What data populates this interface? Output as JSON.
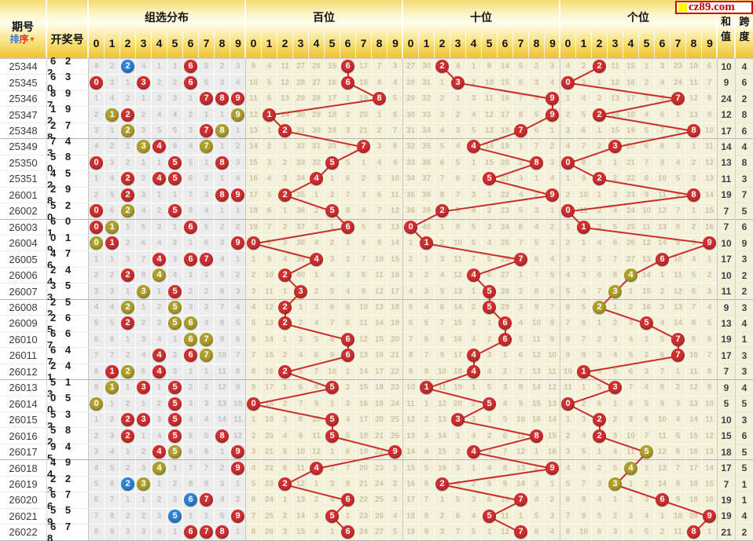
{
  "header": {
    "issue_label": "期号",
    "sort_char1": "排",
    "sort_char2": "序",
    "sort_arrow": "▼",
    "draw_label": "开奖号",
    "sections": [
      {
        "label": "组选分布"
      },
      {
        "label": "百位"
      },
      {
        "label": "十位"
      },
      {
        "label": "个位"
      }
    ],
    "digits": [
      "0",
      "1",
      "2",
      "3",
      "4",
      "5",
      "6",
      "7",
      "8",
      "9"
    ],
    "sum_char1": "和",
    "sum_char2": "值",
    "span_char1": "跨",
    "span_char2": "度",
    "logo_text": "cz89.com"
  },
  "colors": {
    "red_ball": "#d02f2f",
    "olive_ball": "#afa02b",
    "blue_ball": "#2e83d6",
    "trend_line": "#ca2d29",
    "logo_red": "#c00000",
    "logo_yellow": "#ffff00"
  },
  "chart_data": {
    "type": "table",
    "draws": [
      {
        "issue": "25344",
        "num": "622"
      },
      {
        "issue": "25345",
        "num": "630"
      },
      {
        "issue": "25346",
        "num": "897"
      },
      {
        "issue": "25347",
        "num": "192"
      },
      {
        "issue": "25348",
        "num": "278"
      },
      {
        "issue": "25349",
        "num": "743"
      },
      {
        "issue": "25350",
        "num": "580"
      },
      {
        "issue": "25351",
        "num": "452"
      },
      {
        "issue": "26001",
        "num": "298"
      },
      {
        "issue": "26002",
        "num": "520"
      },
      {
        "issue": "26003",
        "num": "601"
      },
      {
        "issue": "26004",
        "num": "019"
      },
      {
        "issue": "26005",
        "num": "476"
      },
      {
        "issue": "26006",
        "num": "244"
      },
      {
        "issue": "26007",
        "num": "353"
      },
      {
        "issue": "26008",
        "num": "252"
      },
      {
        "issue": "26009",
        "num": "265"
      },
      {
        "issue": "26010",
        "num": "667"
      },
      {
        "issue": "26011",
        "num": "647"
      },
      {
        "issue": "26012",
        "num": "241"
      },
      {
        "issue": "26013",
        "num": "513"
      },
      {
        "issue": "26014",
        "num": "050"
      },
      {
        "issue": "26015",
        "num": "532"
      },
      {
        "issue": "26016",
        "num": "582"
      },
      {
        "issue": "26017",
        "num": "945"
      },
      {
        "issue": "26018",
        "num": "494"
      },
      {
        "issue": "26019",
        "num": "223"
      },
      {
        "issue": "26020",
        "num": "676"
      },
      {
        "issue": "26021",
        "num": "559"
      },
      {
        "issue": "26022",
        "num": "678"
      }
    ],
    "sum_values": [
      10,
      9,
      24,
      12,
      17,
      14,
      13,
      11,
      19,
      7,
      7,
      10,
      17,
      10,
      11,
      9,
      13,
      19,
      17,
      7,
      9,
      5,
      10,
      15,
      18,
      17,
      7,
      19,
      19,
      21
    ],
    "span_values": [
      4,
      6,
      2,
      8,
      6,
      4,
      8,
      3,
      7,
      5,
      6,
      9,
      3,
      2,
      2,
      3,
      4,
      1,
      3,
      3,
      4,
      5,
      3,
      6,
      5,
      5,
      1,
      1,
      4,
      2
    ],
    "seeds": {
      "zuxuan": [
        4,
        2,
        0,
        4,
        1,
        1,
        0,
        5,
        2,
        3
      ],
      "bai": [
        9,
        4,
        11,
        27,
        26,
        15,
        0,
        17,
        7,
        3
      ],
      "shi": [
        27,
        30,
        0,
        4,
        1,
        9,
        14,
        5,
        2,
        3
      ],
      "ge": [
        4,
        2,
        0,
        11,
        15,
        1,
        3,
        23,
        10,
        6
      ]
    },
    "circle_colors": {
      "zuxuan": [
        {
          "2": "B",
          "6": "R"
        },
        {
          "0": "R",
          "3": "R",
          "6": "R"
        },
        {
          "7": "R",
          "8": "R",
          "9": "R"
        },
        {
          "1": "O",
          "2": "R",
          "9": "O"
        },
        {
          "2": "O",
          "7": "R",
          "8": "O"
        },
        {
          "3": "O",
          "4": "R",
          "7": "O"
        },
        {
          "0": "R",
          "5": "R",
          "8": "R"
        },
        {
          "2": "R",
          "4": "R",
          "5": "R"
        },
        {
          "2": "R",
          "8": "R",
          "9": "R"
        },
        {
          "0": "R",
          "2": "O",
          "5": "R"
        },
        {
          "0": "R",
          "1": "O",
          "6": "R"
        },
        {
          "0": "O",
          "1": "R",
          "9": "R"
        },
        {
          "4": "R",
          "6": "R",
          "7": "R"
        },
        {
          "2": "R",
          "4": "O"
        },
        {
          "3": "O",
          "5": "R"
        },
        {
          "2": "O",
          "5": "O"
        },
        {
          "2": "R",
          "5": "O",
          "6": "O"
        },
        {
          "6": "O",
          "7": "O"
        },
        {
          "4": "R",
          "6": "R",
          "7": "O"
        },
        {
          "1": "R",
          "2": "O",
          "4": "R"
        },
        {
          "1": "O",
          "3": "R",
          "5": "R"
        },
        {
          "0": "O",
          "5": "R"
        },
        {
          "2": "R",
          "3": "R",
          "5": "R"
        },
        {
          "2": "R",
          "5": "R",
          "8": "R"
        },
        {
          "4": "R",
          "5": "O",
          "9": "R"
        },
        {
          "4": "O",
          "9": "R"
        },
        {
          "2": "B",
          "3": "O"
        },
        {
          "6": "B",
          "7": "R"
        },
        {
          "5": "B",
          "9": "R"
        },
        {
          "6": "R",
          "7": "R",
          "8": "R"
        }
      ],
      "ge": [
        "R",
        "R",
        "R",
        "R",
        "R",
        "R",
        "R",
        "R",
        "R",
        "R",
        "R",
        "R",
        "R",
        "O",
        "O",
        "O",
        "R",
        "R",
        "R",
        "R",
        "R",
        "R",
        "R",
        "R",
        "O",
        "O",
        "O",
        "R",
        "R",
        "R"
      ]
    }
  }
}
